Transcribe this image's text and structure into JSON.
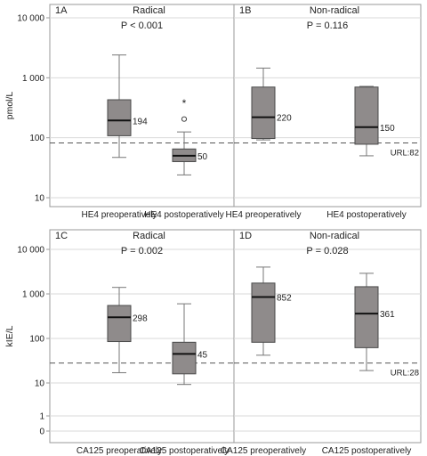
{
  "chart_data": [
    {
      "type": "boxplot",
      "panel_id": "1A",
      "title": "Radical",
      "p_value": "P < 0.001",
      "ylabel": "pmol/L",
      "yscale": "log",
      "ylim": [
        7,
        10000
      ],
      "yticks": [
        10,
        100,
        1000,
        10000
      ],
      "ytick_labels": [
        "10",
        "100",
        "1 000",
        "10 000"
      ],
      "reference_line": {
        "value": 82,
        "label": "URL:82"
      },
      "categories": [
        "HE4 preoperatively",
        "HE4 postoperatively"
      ],
      "boxes": [
        {
          "whisker_low": 47,
          "q1": 108,
          "median": 194,
          "q3": 430,
          "whisker_high": 2400,
          "median_label": "194",
          "outliers": []
        },
        {
          "whisker_low": 24,
          "q1": 40,
          "median": 50,
          "q3": 65,
          "whisker_high": 125,
          "median_label": "50",
          "outliers": [
            {
              "value": 205,
              "marker": "circle"
            },
            {
              "value": 390,
              "marker": "star"
            }
          ]
        }
      ]
    },
    {
      "type": "boxplot",
      "panel_id": "1B",
      "title": "Non-radical",
      "p_value": "P = 0.116",
      "yscale": "log",
      "ylim": [
        7,
        10000
      ],
      "reference_line": {
        "value": 82,
        "label": "URL:82"
      },
      "categories": [
        "HE4 preoperatively",
        "HE4 postoperatively"
      ],
      "boxes": [
        {
          "whisker_low": 92,
          "q1": 97,
          "median": 220,
          "q3": 700,
          "whisker_high": 1450,
          "median_label": "220",
          "outliers": []
        },
        {
          "whisker_low": 50,
          "q1": 78,
          "median": 150,
          "q3": 700,
          "whisker_high": 720,
          "median_label": "150",
          "outliers": []
        }
      ]
    },
    {
      "type": "boxplot",
      "panel_id": "1C",
      "title": "Radical",
      "p_value": "P = 0.002",
      "ylabel": "kIE/L",
      "yscale": "log",
      "ylim": [
        0,
        10000
      ],
      "yticks": [
        0,
        1,
        10,
        100,
        1000,
        10000
      ],
      "ytick_labels": [
        "0",
        "1",
        "10",
        "100",
        "1 000",
        "10 000"
      ],
      "reference_line": {
        "value": 28,
        "label": "URL:28"
      },
      "categories": [
        "CA125 preoperatively",
        "CA125 postoperatively"
      ],
      "boxes": [
        {
          "whisker_low": 17,
          "q1": 85,
          "median": 298,
          "q3": 550,
          "whisker_high": 1400,
          "median_label": "298",
          "outliers": []
        },
        {
          "whisker_low": 9,
          "q1": 16,
          "median": 45,
          "q3": 82,
          "whisker_high": 600,
          "median_label": "45",
          "outliers": []
        }
      ]
    },
    {
      "type": "boxplot",
      "panel_id": "1D",
      "title": "Non-radical",
      "p_value": "P = 0.028",
      "yscale": "log",
      "ylim": [
        0,
        10000
      ],
      "reference_line": {
        "value": 28,
        "label": "URL:28"
      },
      "categories": [
        "CA125 preoperatively",
        "CA125 postoperatively"
      ],
      "boxes": [
        {
          "whisker_low": 42,
          "q1": 82,
          "median": 852,
          "q3": 1750,
          "whisker_high": 4000,
          "median_label": "852",
          "outliers": []
        },
        {
          "whisker_low": 19,
          "q1": 62,
          "median": 361,
          "q3": 1450,
          "whisker_high": 2900,
          "median_label": "361",
          "outliers": []
        }
      ]
    }
  ],
  "colors": {
    "box_fill": "#8f8b8b",
    "box_stroke": "#4a4a4a",
    "whisker": "#777777",
    "median": "#111111",
    "grid": "#d9d9d9",
    "frame": "#9a9a9a",
    "reference_line": "#555555"
  }
}
